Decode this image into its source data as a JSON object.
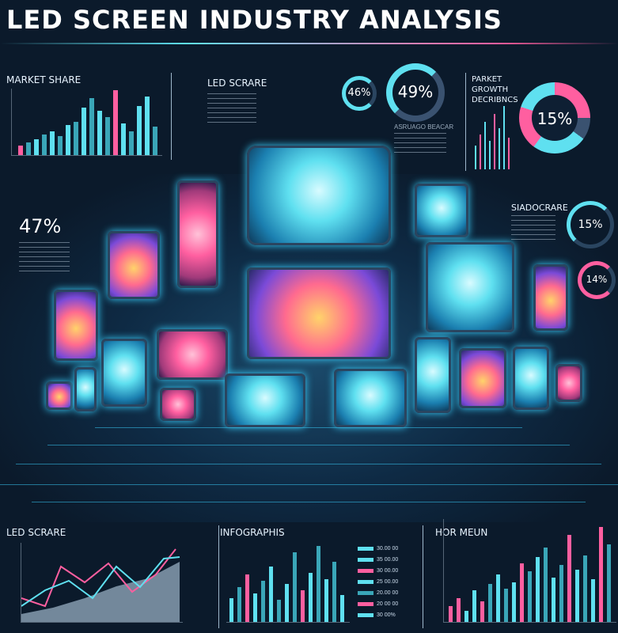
{
  "header": {
    "title": "LED SCREEN INDUSTRY ANALYSIS"
  },
  "top_left": {
    "label": "MARKET SHARE"
  },
  "top_mid": {
    "label": "LED SCRARE",
    "sub": "ASRUAGO BEACAR"
  },
  "donut_small": {
    "value": "46%"
  },
  "donut_big": {
    "value": "49%"
  },
  "top_right": {
    "label_line1": "PARKET",
    "label_line2": "GROWTH",
    "label_line3": "DECRIBNCS",
    "donut": "15%"
  },
  "mid_left": {
    "value": "47%"
  },
  "mid_right": {
    "label": "SIADOCRARE",
    "donut1": "15%",
    "donut2": "14%"
  },
  "bottom_left": {
    "label": "LED SCRARE"
  },
  "bottom_mid": {
    "label": "INFOGRAPHIS"
  },
  "bottom_right": {
    "label": "HOR MEUN"
  },
  "colors": {
    "cyan": "#5fe0f0",
    "pink": "#ff5fa0",
    "teal": "#3aa6b8",
    "navy": "#0b1a2b"
  }
}
